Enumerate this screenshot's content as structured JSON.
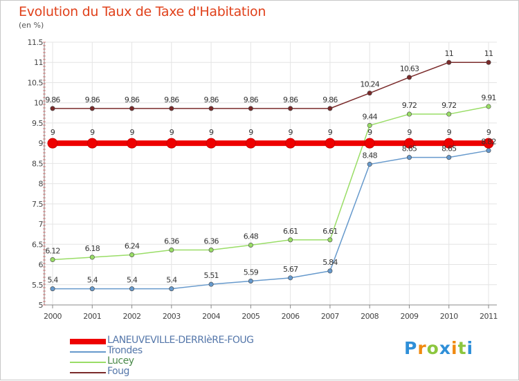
{
  "title": "Evolution du Taux de Taxe d'Habitation",
  "unit": "(en %)",
  "logo": {
    "chars": [
      "P",
      "r",
      "o",
      "x",
      "i",
      "t",
      "i"
    ],
    "colors": [
      "#2f8fd8",
      "#f08a10",
      "#8cc63f",
      "#2f8fd8",
      "#f08a10",
      "#8cc63f",
      "#2f8fd8"
    ]
  },
  "chart_data": {
    "type": "line",
    "x": [
      "2000",
      "2001",
      "2002",
      "2003",
      "2004",
      "2005",
      "2006",
      "2007",
      "2008",
      "2009",
      "2010",
      "2011"
    ],
    "ylim": [
      5,
      11.5
    ],
    "yticks": [
      "5",
      "5.5",
      "6",
      "6.5",
      "7",
      "7.5",
      "8",
      "8.5",
      "9",
      "9.5",
      "10",
      "10.5",
      "11",
      "11.5"
    ],
    "grid": true,
    "series": [
      {
        "name": "LANEUVEVILLE-DERRIèRE-FOUG",
        "color": "#ee0000",
        "width": 8,
        "values": [
          9,
          9,
          9,
          9,
          9,
          9,
          9,
          9,
          9,
          9,
          9,
          9
        ],
        "labels": [
          "9",
          "9",
          "9",
          "9",
          "9",
          "9",
          "9",
          "9",
          "9",
          "9",
          "9",
          "9"
        ]
      },
      {
        "name": "Trondes",
        "color": "#6699cc",
        "width": 1.5,
        "values": [
          5.4,
          5.4,
          5.4,
          5.4,
          5.51,
          5.59,
          5.67,
          5.84,
          8.48,
          8.65,
          8.65,
          8.82
        ],
        "labels": [
          "5.4",
          "5.4",
          "5.4",
          "5.4",
          "5.51",
          "5.59",
          "5.67",
          "5.84",
          "8.48",
          "8.65",
          "8.65",
          "8.82"
        ]
      },
      {
        "name": "Lucey",
        "color": "#99dd66",
        "width": 1.5,
        "values": [
          6.12,
          6.18,
          6.24,
          6.36,
          6.36,
          6.48,
          6.61,
          6.61,
          9.44,
          9.72,
          9.72,
          9.91
        ],
        "labels": [
          "6.12",
          "6.18",
          "6.24",
          "6.36",
          "6.36",
          "6.48",
          "6.61",
          "6.61",
          "9.44",
          "9.72",
          "9.72",
          "9.91"
        ]
      },
      {
        "name": "Foug",
        "color": "#7a2a2a",
        "width": 1.5,
        "values": [
          9.86,
          9.86,
          9.86,
          9.86,
          9.86,
          9.86,
          9.86,
          9.86,
          10.24,
          10.63,
          11,
          11
        ],
        "labels": [
          "9.86",
          "9.86",
          "9.86",
          "9.86",
          "9.86",
          "9.86",
          "9.86",
          "9.86",
          "10.24",
          "10.63",
          "11",
          "11"
        ]
      }
    ]
  }
}
